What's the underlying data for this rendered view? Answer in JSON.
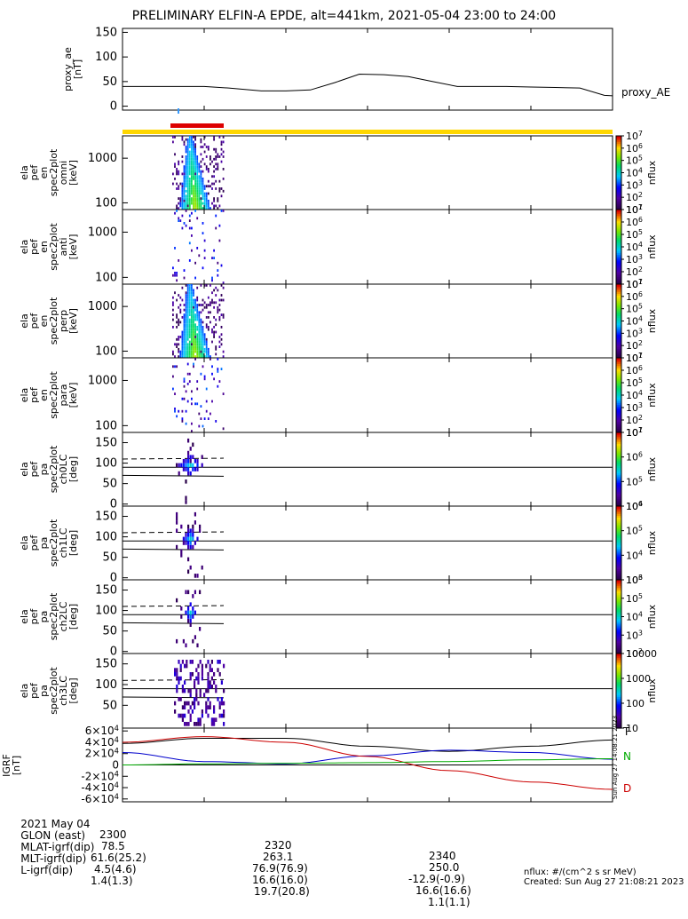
{
  "title": "PRELIMINARY ELFIN-A EPDE, alt=441km, 2021-05-04 23:00 to 24:00",
  "chart_data": [
    {
      "type": "line",
      "id": "proxy_ae",
      "ylabel_lines": [
        "proxy_ae",
        "[nT]"
      ],
      "legend": "proxy_AE",
      "ylim": [
        -8,
        158
      ],
      "yticks": [
        "0",
        "50",
        "100",
        "150"
      ],
      "x_minutes": [
        0,
        5,
        10,
        13,
        17,
        20,
        23,
        26,
        29,
        32,
        35,
        38,
        41,
        44,
        47,
        50,
        53,
        56,
        59,
        60
      ],
      "values": [
        40,
        40,
        40,
        37,
        31,
        31,
        33,
        48,
        65,
        64,
        60,
        50,
        40,
        40,
        40,
        39,
        38,
        37,
        22,
        21
      ]
    },
    {
      "type": "heatmap",
      "id": "omni",
      "ylabel_lines": [
        "ela",
        "pef",
        "en",
        "spec2plot",
        "omni",
        "[keV]"
      ],
      "yticks": [
        "100",
        "1000"
      ],
      "colorbar_ticks": [
        "10^1",
        "10^2",
        "10^3",
        "10^4",
        "10^5",
        "10^6",
        "10^7"
      ],
      "colorbar_label": "nflux"
    },
    {
      "type": "heatmap",
      "id": "anti",
      "ylabel_lines": [
        "ela",
        "pef",
        "en",
        "spec2plot",
        "anti",
        "[keV]"
      ],
      "yticks": [
        "100",
        "1000"
      ],
      "colorbar_ticks": [
        "10^1",
        "10^2",
        "10^3",
        "10^4",
        "10^5",
        "10^6",
        "10^7"
      ],
      "colorbar_label": "nflux"
    },
    {
      "type": "heatmap",
      "id": "perp",
      "ylabel_lines": [
        "ela",
        "pef",
        "en",
        "spec2plot",
        "perp",
        "[keV]"
      ],
      "yticks": [
        "100",
        "1000"
      ],
      "colorbar_ticks": [
        "10^1",
        "10^2",
        "10^3",
        "10^4",
        "10^5",
        "10^6",
        "10^7"
      ],
      "colorbar_label": "nflux"
    },
    {
      "type": "heatmap",
      "id": "para",
      "ylabel_lines": [
        "ela",
        "pef",
        "en",
        "spec2plot",
        "para",
        "[keV]"
      ],
      "yticks": [
        "100",
        "1000"
      ],
      "colorbar_ticks": [
        "10^1",
        "10^2",
        "10^3",
        "10^4",
        "10^5",
        "10^6",
        "10^7"
      ],
      "colorbar_label": "nflux"
    },
    {
      "type": "heatmap",
      "id": "ch0LC",
      "ylabel_lines": [
        "ela",
        "pef",
        "pa",
        "spec2plot",
        "ch0LC",
        "[deg]"
      ],
      "yticks": [
        "0",
        "50",
        "100",
        "150"
      ],
      "colorbar_ticks": [
        "10^4",
        "10^5",
        "10^6",
        "10^7"
      ],
      "colorbar_label": "nflux"
    },
    {
      "type": "heatmap",
      "id": "ch1LC",
      "ylabel_lines": [
        "ela",
        "pef",
        "pa",
        "spec2plot",
        "ch1LC",
        "[deg]"
      ],
      "yticks": [
        "0",
        "50",
        "100",
        "150"
      ],
      "colorbar_ticks": [
        "10^3",
        "10^4",
        "10^5",
        "10^6"
      ],
      "colorbar_label": "nflux"
    },
    {
      "type": "heatmap",
      "id": "ch2LC",
      "ylabel_lines": [
        "ela",
        "pef",
        "pa",
        "spec2plot",
        "ch2LC",
        "[deg]"
      ],
      "yticks": [
        "0",
        "50",
        "100",
        "150"
      ],
      "colorbar_ticks": [
        "10^2",
        "10^3",
        "10^4",
        "10^5",
        "10^6"
      ],
      "colorbar_label": "nflux"
    },
    {
      "type": "heatmap",
      "id": "ch3LC",
      "ylabel_lines": [
        "ela",
        "pef",
        "pa",
        "spec2plot",
        "ch3LC",
        "[deg]"
      ],
      "yticks": [
        "50",
        "100",
        "150"
      ],
      "colorbar_ticks": [
        "10",
        "100",
        "1000",
        "10000"
      ],
      "colorbar_label": "nflux"
    },
    {
      "type": "line",
      "id": "igrf",
      "ylabel_lines": [
        "IGRF",
        "[nT]"
      ],
      "yticks": [
        "-6×10^4",
        "-4×10^4",
        "-2×10^4",
        "0",
        "2×10^4",
        "4×10^4",
        "6×10^4"
      ],
      "ylim": [
        -65000,
        65000
      ],
      "x_minutes": [
        0,
        10,
        20,
        30,
        40,
        50,
        60
      ],
      "series": [
        {
          "name": "T",
          "color": "#000000",
          "values": [
            38000,
            47000,
            47000,
            33000,
            24000,
            33000,
            44000
          ]
        },
        {
          "name": "N",
          "color": "#0000cc",
          "values": [
            22000,
            6000,
            2000,
            16000,
            26000,
            22000,
            10000
          ]
        },
        {
          "name": "D",
          "color": "#cc0000",
          "values": [
            40000,
            50000,
            40000,
            15000,
            -10000,
            -30000,
            -43000
          ]
        },
        {
          "name": "",
          "color": "#00aa00",
          "values": [
            0,
            2000,
            3000,
            4000,
            6000,
            9000,
            11000
          ]
        }
      ],
      "side_stamp": "Sun Aug 27 14:08:21 2023"
    }
  ],
  "xaxis": {
    "tick_labels": [
      "2300",
      "2320",
      "2340"
    ],
    "tick_minutes": [
      0,
      20,
      40
    ]
  },
  "footer": {
    "rows": [
      {
        "label": "2021 May 04",
        "v0": "2300",
        "v1": "2320",
        "v2": "2340"
      },
      {
        "label": "GLON (east)",
        "v0": "78.5",
        "v1": "263.1",
        "v2": "250.0"
      },
      {
        "label": "MLAT-igrf(dip)",
        "v0": "61.6(25.2)",
        "v1": "76.9(76.9)",
        "v2": "-12.9(-0.9)"
      },
      {
        "label": "MLT-igrf(dip)",
        "v0": "4.5(4.6)",
        "v1": "16.6(16.0)",
        "v2": "16.6(16.6)"
      },
      {
        "label": "L-igrf(dip)",
        "v0": "1.4(1.3)",
        "v1": "19.7(20.8)",
        "v2": "1.1(1.1)"
      }
    ],
    "units_note": "nflux: #/(cm^2 s sr MeV)",
    "created": "Created: Sun Aug 27 21:08:21 2023"
  },
  "colors": {
    "status_bar": "#ffd700",
    "science_bar": "#dd0000",
    "tick_blue": "#3399ff"
  }
}
